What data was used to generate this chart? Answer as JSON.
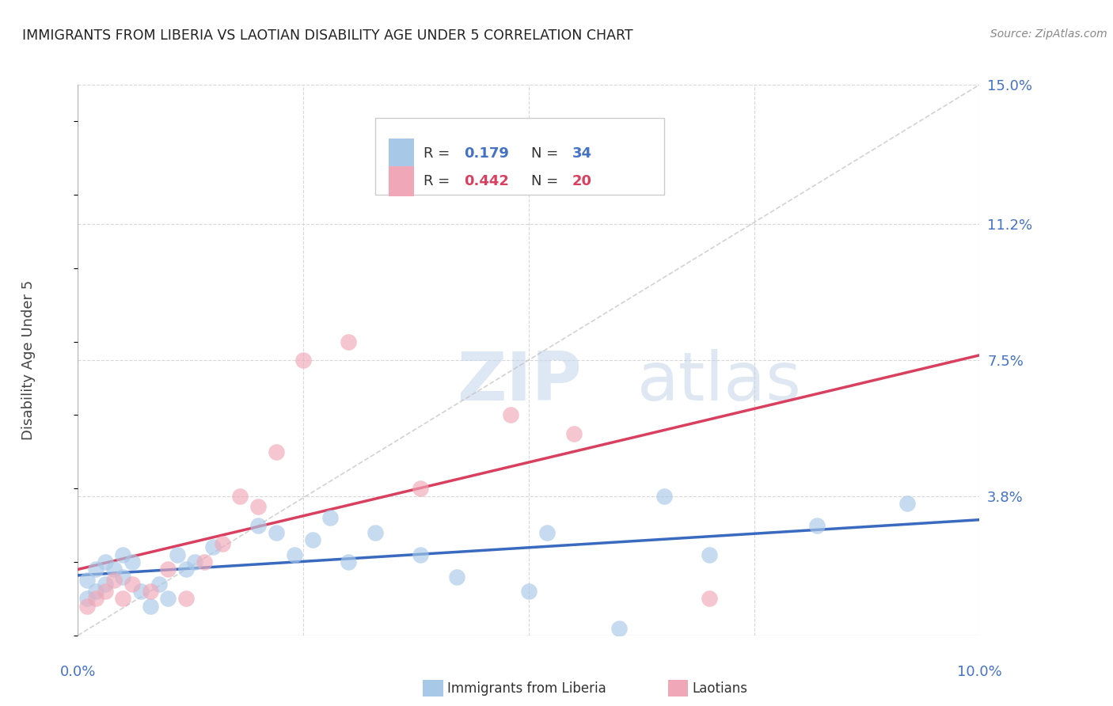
{
  "title": "IMMIGRANTS FROM LIBERIA VS LAOTIAN DISABILITY AGE UNDER 5 CORRELATION CHART",
  "source": "Source: ZipAtlas.com",
  "ylabel": "Disability Age Under 5",
  "legend_labels": [
    "Immigrants from Liberia",
    "Laotians"
  ],
  "liberia_R": "0.179",
  "liberia_N": "34",
  "laotian_R": "0.442",
  "laotian_N": "20",
  "background_color": "#ffffff",
  "grid_color": "#d8d8d8",
  "liberia_color": "#a8c8e8",
  "laotian_color": "#f0a8b8",
  "liberia_line_color": "#3a6abf",
  "laotian_line_color": "#d94060",
  "diagonal_line_color": "#c0c0c0",
  "text_color_blue": "#4472c4",
  "text_color_pink": "#d94060",
  "watermark_zip": "ZIP",
  "watermark_atlas": "atlas",
  "xlim": [
    0.0,
    0.1
  ],
  "ylim": [
    0.0,
    0.15
  ],
  "y_tick_vals": [
    0.0,
    0.038,
    0.075,
    0.112,
    0.15
  ],
  "y_tick_labels": [
    "",
    "3.8%",
    "7.5%",
    "11.2%",
    "15.0%"
  ],
  "x_tick_vals": [
    0.0,
    0.025,
    0.05,
    0.075,
    0.1
  ],
  "x_tick_labels": [
    "0.0%",
    "",
    "",
    "",
    "10.0%"
  ],
  "liberia_x": [
    0.001,
    0.001,
    0.002,
    0.002,
    0.003,
    0.003,
    0.004,
    0.005,
    0.005,
    0.006,
    0.007,
    0.008,
    0.009,
    0.01,
    0.011,
    0.012,
    0.013,
    0.015,
    0.02,
    0.022,
    0.024,
    0.026,
    0.028,
    0.03,
    0.033,
    0.038,
    0.042,
    0.05,
    0.052,
    0.06,
    0.065,
    0.07,
    0.082,
    0.092
  ],
  "liberia_y": [
    0.01,
    0.015,
    0.012,
    0.018,
    0.014,
    0.02,
    0.018,
    0.016,
    0.022,
    0.02,
    0.012,
    0.008,
    0.014,
    0.01,
    0.022,
    0.018,
    0.02,
    0.024,
    0.03,
    0.028,
    0.022,
    0.026,
    0.032,
    0.02,
    0.028,
    0.022,
    0.016,
    0.012,
    0.028,
    0.002,
    0.038,
    0.022,
    0.03,
    0.036
  ],
  "laotian_x": [
    0.001,
    0.002,
    0.003,
    0.004,
    0.005,
    0.006,
    0.008,
    0.01,
    0.012,
    0.014,
    0.016,
    0.018,
    0.02,
    0.022,
    0.025,
    0.03,
    0.038,
    0.048,
    0.055,
    0.07
  ],
  "laotian_y": [
    0.008,
    0.01,
    0.012,
    0.015,
    0.01,
    0.014,
    0.012,
    0.018,
    0.01,
    0.02,
    0.025,
    0.038,
    0.035,
    0.05,
    0.075,
    0.08,
    0.04,
    0.06,
    0.055,
    0.01
  ]
}
